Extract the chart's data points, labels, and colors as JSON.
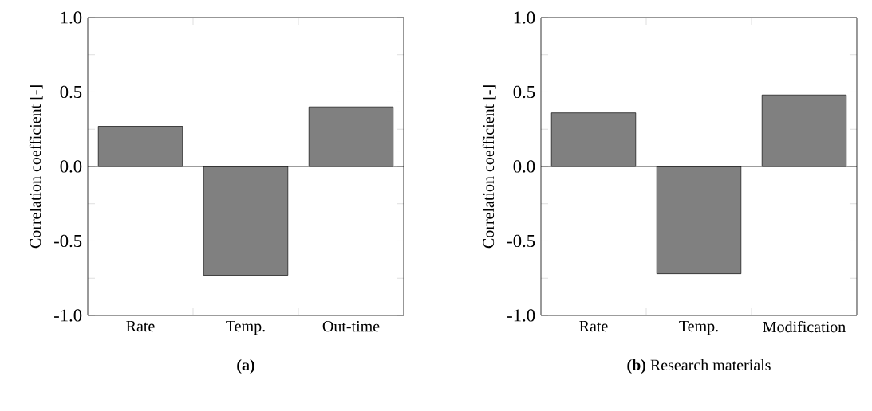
{
  "chart_data": [
    {
      "type": "bar",
      "subtitle": "**(a)**",
      "ylabel": "Correlation coefficient [-]",
      "categories": [
        "Rate",
        "Temp.",
        "Out-time"
      ],
      "values": [
        0.27,
        -0.73,
        0.4
      ],
      "color": "#808080",
      "ylim": [
        -1.0,
        1.0
      ],
      "yticks": [
        {
          "value": -1.0,
          "label": "-1.0"
        },
        {
          "value": -0.75,
          "label": null
        },
        {
          "value": -0.5,
          "label": "-0.5"
        },
        {
          "value": -0.25,
          "label": null
        },
        {
          "value": 0,
          "label": "0.0"
        },
        {
          "value": 0.25,
          "label": null
        },
        {
          "value": 0.5,
          "label": "0.5"
        },
        {
          "value": 0.75,
          "label": null
        },
        {
          "value": 1.0,
          "label": "1.0"
        }
      ],
      "ref_lines": [
        {
          "axis": "y",
          "value": 0
        }
      ]
    },
    {
      "type": "bar",
      "subtitle": "**(b)** Research materials",
      "ylabel": "Correlation coefficient [-]",
      "categories": [
        "Rate",
        "Temp.",
        "Modification"
      ],
      "values": [
        0.36,
        -0.72,
        0.48
      ],
      "color": "#808080",
      "ylim": [
        -1.0,
        1.0
      ],
      "yticks": [
        {
          "value": -1.0,
          "label": "-1.0"
        },
        {
          "value": -0.75,
          "label": null
        },
        {
          "value": -0.5,
          "label": "-0.5"
        },
        {
          "value": -0.25,
          "label": null
        },
        {
          "value": 0,
          "label": "0.0"
        },
        {
          "value": 0.25,
          "label": null
        },
        {
          "value": 0.5,
          "label": "0.5"
        },
        {
          "value": 0.75,
          "label": null
        },
        {
          "value": 1.0,
          "label": "1.0"
        }
      ],
      "ref_lines": [
        {
          "axis": "y",
          "value": 0
        }
      ]
    }
  ]
}
